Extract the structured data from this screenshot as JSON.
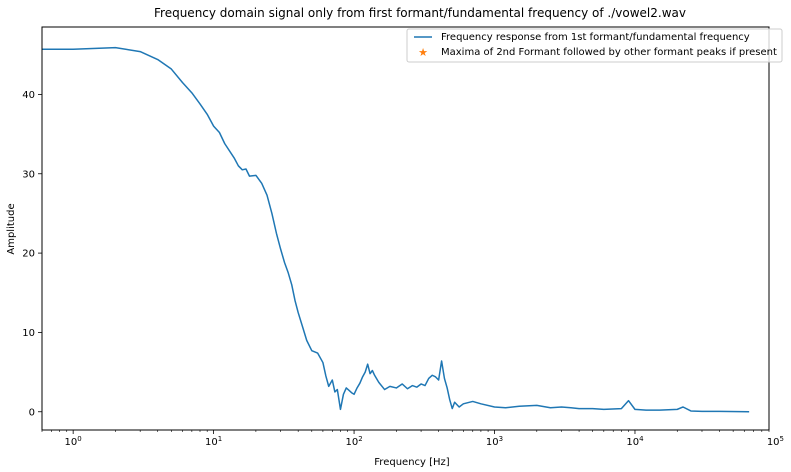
{
  "chart_data": {
    "type": "line",
    "title": "Frequency domain signal only from first formant/fundamental frequency of ./vowel2.wav",
    "xlabel": "Frequency [Hz]",
    "ylabel": "Amplitude",
    "xscale": "log",
    "xlim": [
      0.6,
      90000
    ],
    "ylim": [
      -2.3,
      48.5
    ],
    "grid": false,
    "legend_position": "top-right",
    "x_tick_labels": [
      {
        "value": 1,
        "base": "10",
        "exp": "0"
      },
      {
        "value": 10,
        "base": "10",
        "exp": "1"
      },
      {
        "value": 100,
        "base": "10",
        "exp": "2"
      },
      {
        "value": 1000,
        "base": "10",
        "exp": "3"
      },
      {
        "value": 10000,
        "base": "10",
        "exp": "4"
      },
      {
        "value": 100000,
        "base": "10",
        "exp": "5"
      }
    ],
    "y_ticks": [
      0,
      10,
      20,
      30,
      40
    ],
    "series": [
      {
        "name": "Frequency response from 1st formant/fundamental frequency",
        "color": "#1f77b4",
        "marker": "line",
        "points": [
          [
            0.6,
            45.7
          ],
          [
            1,
            45.7
          ],
          [
            2,
            45.9
          ],
          [
            3,
            45.4
          ],
          [
            4,
            44.4
          ],
          [
            5,
            43.2
          ],
          [
            6,
            41.5
          ],
          [
            7,
            40.2
          ],
          [
            8,
            38.8
          ],
          [
            9,
            37.5
          ],
          [
            10,
            36.0
          ],
          [
            11,
            35.2
          ],
          [
            12,
            33.8
          ],
          [
            14,
            32.0
          ],
          [
            15,
            31.0
          ],
          [
            16,
            30.5
          ],
          [
            17,
            30.6
          ],
          [
            18,
            29.7
          ],
          [
            20,
            29.8
          ],
          [
            22,
            28.8
          ],
          [
            24,
            27.3
          ],
          [
            26,
            25.0
          ],
          [
            28,
            22.5
          ],
          [
            30,
            20.5
          ],
          [
            32,
            18.8
          ],
          [
            34,
            17.5
          ],
          [
            36,
            16.0
          ],
          [
            38,
            14.0
          ],
          [
            40,
            12.5
          ],
          [
            43,
            10.7
          ],
          [
            46,
            9.0
          ],
          [
            50,
            7.7
          ],
          [
            55,
            7.4
          ],
          [
            60,
            6.2
          ],
          [
            63,
            4.5
          ],
          [
            66,
            3.2
          ],
          [
            70,
            4.0
          ],
          [
            73,
            2.5
          ],
          [
            76,
            2.8
          ],
          [
            80,
            0.3
          ],
          [
            84,
            2.2
          ],
          [
            88,
            3.0
          ],
          [
            92,
            2.7
          ],
          [
            96,
            2.4
          ],
          [
            100,
            2.2
          ],
          [
            105,
            3.0
          ],
          [
            110,
            3.6
          ],
          [
            115,
            4.4
          ],
          [
            120,
            5.0
          ],
          [
            125,
            6.0
          ],
          [
            130,
            4.8
          ],
          [
            135,
            5.2
          ],
          [
            140,
            4.6
          ],
          [
            150,
            3.7
          ],
          [
            165,
            2.8
          ],
          [
            180,
            3.2
          ],
          [
            200,
            3.0
          ],
          [
            220,
            3.5
          ],
          [
            240,
            2.9
          ],
          [
            260,
            3.3
          ],
          [
            280,
            3.1
          ],
          [
            300,
            3.5
          ],
          [
            320,
            3.3
          ],
          [
            340,
            4.2
          ],
          [
            360,
            4.6
          ],
          [
            380,
            4.4
          ],
          [
            400,
            4.0
          ],
          [
            420,
            6.4
          ],
          [
            440,
            4.2
          ],
          [
            460,
            3.0
          ],
          [
            480,
            1.5
          ],
          [
            500,
            0.4
          ],
          [
            520,
            1.2
          ],
          [
            560,
            0.6
          ],
          [
            600,
            1.0
          ],
          [
            700,
            1.3
          ],
          [
            800,
            1.0
          ],
          [
            1000,
            0.6
          ],
          [
            1200,
            0.5
          ],
          [
            1500,
            0.7
          ],
          [
            2000,
            0.8
          ],
          [
            2500,
            0.5
          ],
          [
            3000,
            0.6
          ],
          [
            3500,
            0.5
          ],
          [
            4000,
            0.4
          ],
          [
            5000,
            0.4
          ],
          [
            6000,
            0.3
          ],
          [
            8000,
            0.4
          ],
          [
            9000,
            1.4
          ],
          [
            10000,
            0.3
          ],
          [
            12000,
            0.2
          ],
          [
            15000,
            0.2
          ],
          [
            20000,
            0.3
          ],
          [
            22000,
            0.6
          ],
          [
            25000,
            0.1
          ],
          [
            30000,
            0.05
          ],
          [
            40000,
            0.05
          ],
          [
            65000,
            0.0
          ]
        ]
      },
      {
        "name": "Maxima of 2nd Formant followed by other formant peaks if present",
        "color": "#ff7f0e",
        "marker": "star",
        "points": []
      }
    ]
  }
}
